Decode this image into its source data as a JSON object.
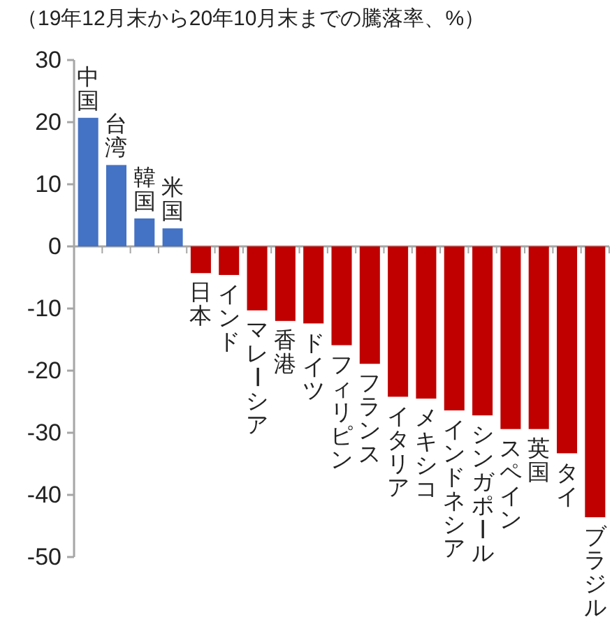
{
  "chart_data": {
    "type": "bar",
    "title": "（19年12月末から20年10月末までの騰落率、%）",
    "categories": [
      "中国",
      "台湾",
      "韓国",
      "米国",
      "日本",
      "インド",
      "マレーシア",
      "香港",
      "ドイツ",
      "フィリピン",
      "フランス",
      "イタリア",
      "メキシコ",
      "インドネシア",
      "シンガポール",
      "スペイン",
      "英国",
      "タイ",
      "ブラジル"
    ],
    "values": [
      20.7,
      13.1,
      4.5,
      2.9,
      -4.3,
      -4.6,
      -10.3,
      -12.0,
      -12.4,
      -15.9,
      -18.9,
      -24.2,
      -24.5,
      -26.4,
      -27.2,
      -29.4,
      -29.4,
      -33.3,
      -43.6
    ],
    "colors": [
      "#4472c4",
      "#4472c4",
      "#4472c4",
      "#4472c4",
      "#c00000",
      "#c00000",
      "#c00000",
      "#c00000",
      "#c00000",
      "#c00000",
      "#c00000",
      "#c00000",
      "#c00000",
      "#c00000",
      "#c00000",
      "#c00000",
      "#c00000",
      "#c00000",
      "#c00000"
    ],
    "ylim": [
      -50,
      30
    ],
    "yticks": [
      30,
      20,
      10,
      0,
      -10,
      -20,
      -30,
      -40,
      -50
    ]
  }
}
